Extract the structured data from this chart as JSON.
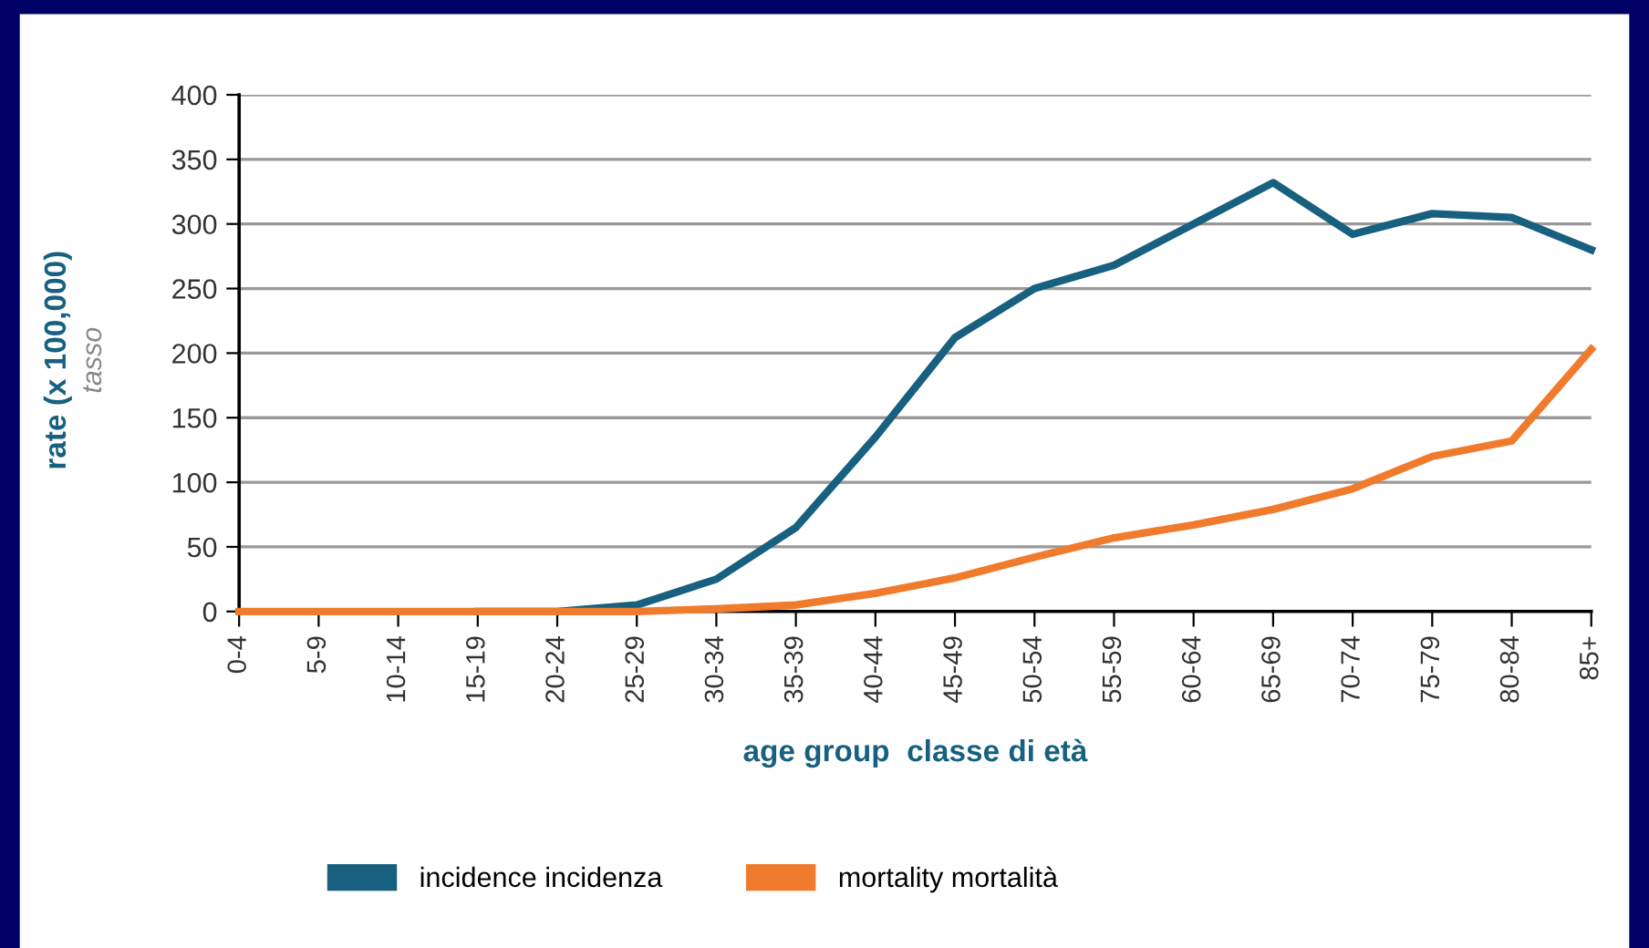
{
  "chart_data": {
    "type": "line",
    "xlabel": "age group  classe di età",
    "ylabel": "rate (x 100,000)\ntasso",
    "categories": [
      "0-4",
      "5-9",
      "10-14",
      "15-19",
      "20-24",
      "25-29",
      "30-34",
      "35-39",
      "40-44",
      "45-49",
      "50-54",
      "55-59",
      "60-64",
      "65-69",
      "70-74",
      "75-79",
      "80-84",
      "85+"
    ],
    "series": [
      {
        "name": "incidence incidenza",
        "color": "#17607f",
        "values": [
          null,
          null,
          null,
          0,
          0,
          5,
          25,
          65,
          135,
          212,
          250,
          268,
          300,
          332,
          292,
          308,
          305,
          280
        ]
      },
      {
        "name": "mortality mortalità",
        "color": "#f07b2d",
        "values": [
          0,
          0,
          0,
          0,
          0,
          0,
          2,
          5,
          14,
          26,
          42,
          57,
          67,
          79,
          95,
          120,
          132,
          203
        ]
      }
    ],
    "ylim": [
      0,
      400
    ],
    "yticks": [
      0,
      50,
      100,
      150,
      200,
      250,
      300,
      350,
      400
    ],
    "grid": "y",
    "legend": "bottom",
    "marker": "none",
    "line_style": "solid"
  }
}
